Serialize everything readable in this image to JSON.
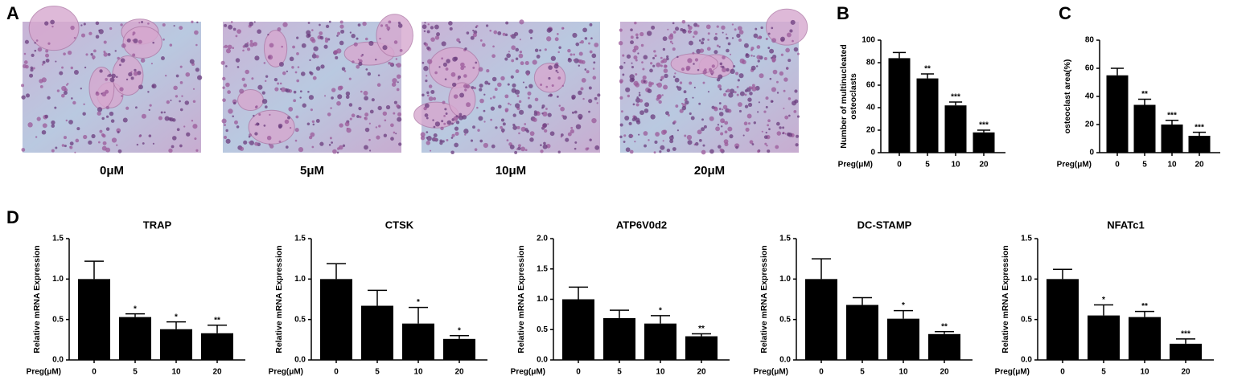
{
  "panel_labels": [
    "A",
    "B",
    "C",
    "D"
  ],
  "images": [
    {
      "label": "0μM"
    },
    {
      "label": "5μM"
    },
    {
      "label": "10μM"
    },
    {
      "label": "20μM"
    }
  ],
  "chart_data": [
    {
      "type": "bar",
      "ylabel": [
        "Number of multinucleated",
        "osteoclasts"
      ],
      "xlabel": "Preg(μM)",
      "categories": [
        "0",
        "5",
        "10",
        "20"
      ],
      "values": [
        84,
        66,
        42,
        18
      ],
      "errors": [
        5,
        4,
        3,
        2
      ],
      "annotations": [
        null,
        "**",
        "***",
        "***"
      ],
      "color": "#000000",
      "ylim": [
        0,
        100
      ],
      "yticks": [
        0,
        20,
        40,
        60,
        80,
        100
      ]
    },
    {
      "type": "bar",
      "ylabel": [
        "osteoclast area(%)"
      ],
      "xlabel": "Preg(μM)",
      "categories": [
        "0",
        "5",
        "10",
        "20"
      ],
      "values": [
        55,
        34,
        20,
        12
      ],
      "errors": [
        5,
        4,
        3,
        2.5
      ],
      "annotations": [
        null,
        "**",
        "***",
        "***"
      ],
      "color": "#000000",
      "ylim": [
        0,
        80
      ],
      "yticks": [
        0,
        20,
        40,
        60,
        80
      ]
    },
    {
      "type": "bar",
      "title": "TRAP",
      "ylabel": [
        "Relative mRNA Expression"
      ],
      "xlabel": "Preg(μM)",
      "categories": [
        "0",
        "5",
        "10",
        "20"
      ],
      "values": [
        1.0,
        0.53,
        0.38,
        0.33
      ],
      "errors": [
        0.22,
        0.04,
        0.09,
        0.1
      ],
      "annotations": [
        null,
        "*",
        "*",
        "**"
      ],
      "color": "#000000",
      "ylim": [
        0,
        1.5
      ],
      "yticks": [
        {
          "value": 0,
          "label": "0.0"
        },
        0.5,
        {
          "value": 1,
          "label": "1.0"
        },
        1.5
      ]
    },
    {
      "type": "bar",
      "title": "CTSK",
      "ylabel": [
        "Relative mRNA Expression"
      ],
      "xlabel": "Preg(μM)",
      "categories": [
        "0",
        "5",
        "10",
        "20"
      ],
      "values": [
        1.0,
        0.67,
        0.45,
        0.26
      ],
      "errors": [
        0.19,
        0.19,
        0.2,
        0.04
      ],
      "annotations": [
        null,
        null,
        "*",
        "*"
      ],
      "color": "#000000",
      "ylim": [
        0,
        1.5
      ],
      "yticks": [
        {
          "value": 0,
          "label": "0.0"
        },
        0.5,
        {
          "value": 1,
          "label": "1.0"
        },
        1.5
      ]
    },
    {
      "type": "bar",
      "title": "ATP6V0d2",
      "ylabel": [
        "Relative mRNA Expression"
      ],
      "xlabel": "Preg(μM)",
      "categories": [
        "0",
        "5",
        "10",
        "20"
      ],
      "values": [
        1.0,
        0.69,
        0.6,
        0.39
      ],
      "errors": [
        0.2,
        0.13,
        0.13,
        0.04
      ],
      "annotations": [
        null,
        null,
        "*",
        "**"
      ],
      "color": "#000000",
      "ylim": [
        0,
        2
      ],
      "yticks": [
        {
          "value": 0,
          "label": "0.0"
        },
        0.5,
        {
          "value": 1,
          "label": "1.0"
        },
        1.5,
        {
          "value": 2,
          "label": "2.0"
        }
      ]
    },
    {
      "type": "bar",
      "title": "DC-STAMP",
      "ylabel": [
        "Relative mRNA Expression"
      ],
      "xlabel": "Preg(μM)",
      "categories": [
        "0",
        "5",
        "10",
        "20"
      ],
      "values": [
        1.0,
        0.68,
        0.51,
        0.32
      ],
      "errors": [
        0.25,
        0.09,
        0.1,
        0.03
      ],
      "annotations": [
        null,
        null,
        "*",
        "**"
      ],
      "color": "#000000",
      "ylim": [
        0,
        1.5
      ],
      "yticks": [
        {
          "value": 0,
          "label": "0.0"
        },
        0.5,
        {
          "value": 1,
          "label": "1.0"
        },
        1.5
      ]
    },
    {
      "type": "bar",
      "title": "NFATc1",
      "ylabel": [
        "Relative mRNA Expression"
      ],
      "xlabel": "Preg(μM)",
      "categories": [
        "0",
        "5",
        "10",
        "20"
      ],
      "values": [
        1.0,
        0.55,
        0.53,
        0.2
      ],
      "errors": [
        0.12,
        0.13,
        0.07,
        0.06
      ],
      "annotations": [
        null,
        "*",
        "**",
        "***"
      ],
      "color": "#000000",
      "ylim": [
        0,
        1.5
      ],
      "yticks": [
        {
          "value": 0,
          "label": "0.0"
        },
        0.5,
        {
          "value": 1,
          "label": "1.0"
        },
        1.5
      ]
    }
  ]
}
